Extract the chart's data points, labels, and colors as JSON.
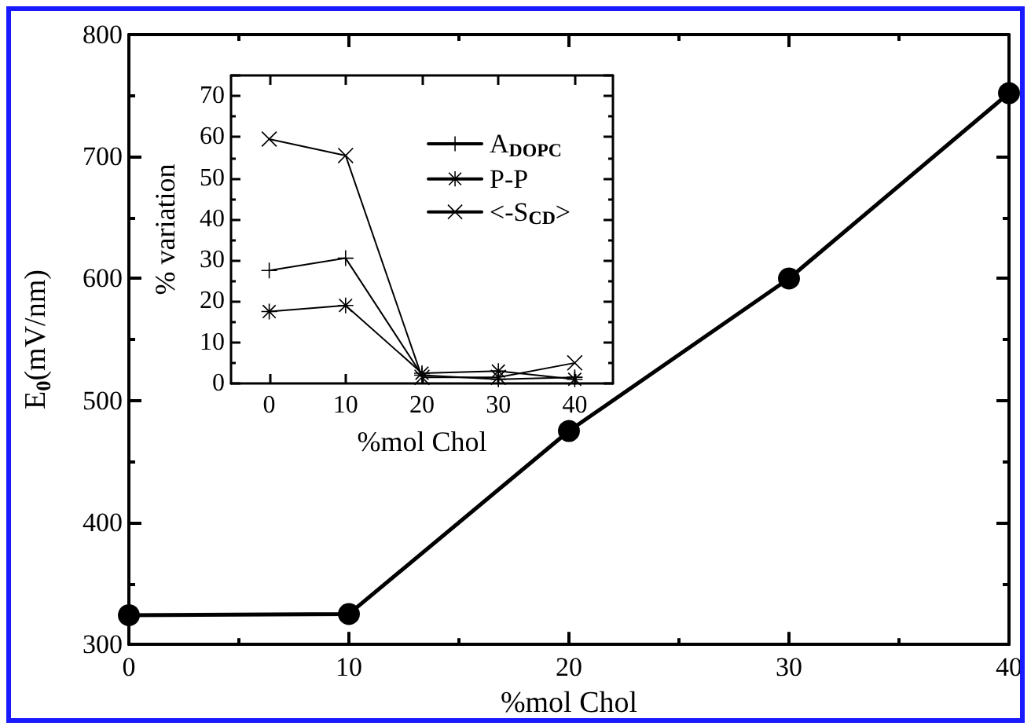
{
  "chart_data": [
    {
      "type": "line",
      "xlabel": "%mol Chol",
      "ylabel": "E$_{0}$(mV/nm)",
      "x": [
        0,
        10,
        20,
        30,
        40
      ],
      "series": [
        {
          "color": "#000000",
          "values": [
            324,
            325,
            475,
            600,
            752
          ]
        }
      ],
      "xlim": [
        0,
        40
      ],
      "xticks": [
        0,
        10,
        20,
        30,
        40
      ],
      "ylim": [
        300,
        800
      ],
      "yticks": [
        300,
        400,
        500,
        600,
        700,
        800
      ],
      "grid": false,
      "legend": false,
      "marker": "circle",
      "line_style": "solid"
    },
    {
      "type": "line",
      "xlabel": "%mol Chol",
      "ylabel": "% variation",
      "x": [
        0,
        10,
        20,
        30,
        40
      ],
      "series": [
        {
          "name": "A$_{DOPC}$",
          "color": "#000000",
          "marker": "plus",
          "values": [
            27.5,
            30.5,
            2,
            1,
            1.5
          ]
        },
        {
          "name": "P-P",
          "color": "#000000",
          "marker": "star",
          "values": [
            17.5,
            19,
            2.5,
            3,
            1
          ]
        },
        {
          "name": "<-S$_{CD}$>",
          "color": "#000000",
          "marker": "cross",
          "values": [
            59.5,
            55.5,
            1.5,
            1.5,
            5
          ]
        }
      ],
      "xlim": [
        -5,
        45
      ],
      "xticks": [
        0,
        10,
        20,
        30,
        40
      ],
      "ylim": [
        0,
        75
      ],
      "yticks": [
        0,
        10,
        20,
        30,
        40,
        50,
        60,
        70
      ],
      "grid": false,
      "legend": "top right",
      "line_style": "solid"
    }
  ]
}
